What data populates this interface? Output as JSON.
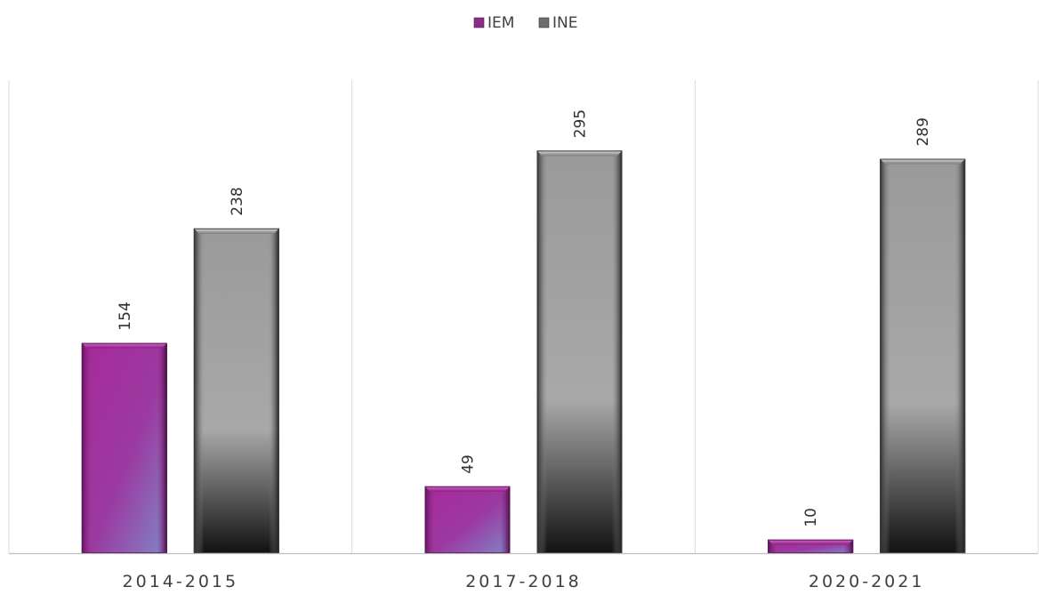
{
  "chart_data": {
    "type": "bar",
    "title": "",
    "xlabel": "",
    "ylabel": "",
    "categories": [
      "2014-2015",
      "2017-2018",
      "2020-2021"
    ],
    "series": [
      {
        "name": "IEM",
        "values": [
          154,
          49,
          10
        ],
        "color": "#9b2a93"
      },
      {
        "name": "INE",
        "values": [
          238,
          295,
          289
        ],
        "color": "#8c8c8c"
      }
    ],
    "ylim": [
      0,
      350
    ],
    "grid": false,
    "legend": "top-center",
    "data_labels": true,
    "data_label_orientation": "vertical"
  }
}
